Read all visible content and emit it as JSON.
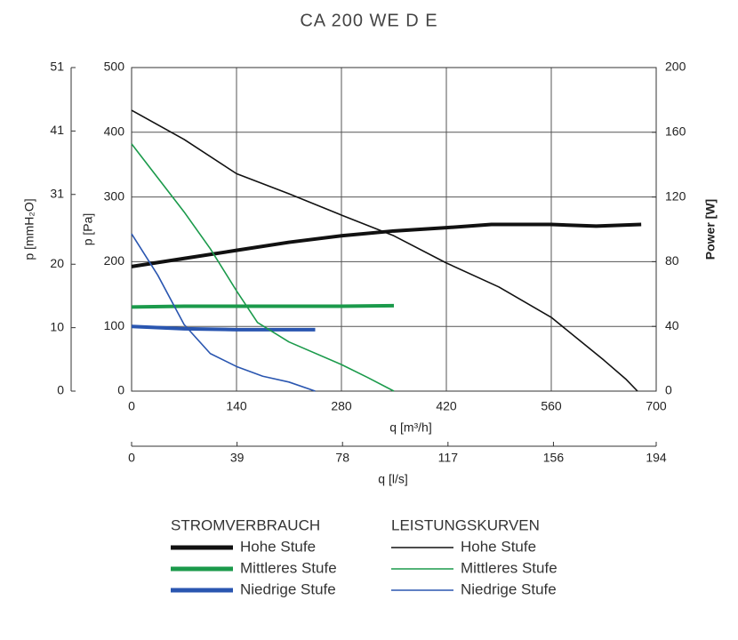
{
  "chart_data": {
    "type": "line",
    "title": "CA 200 WE D E",
    "xlabel": "q [m³/h]",
    "ylabel": "p [Pa]",
    "y3label": "p [mmH₂O]",
    "y2label": "Power [W]",
    "x2label": "q [l/s]",
    "xlim": [
      0,
      700
    ],
    "xticks": [
      0,
      140,
      280,
      420,
      560,
      700
    ],
    "x2lim": [
      0,
      194
    ],
    "x2ticks": [
      0,
      39,
      78,
      117,
      156,
      194
    ],
    "ylim": [
      0,
      500
    ],
    "yticks": [
      0,
      100,
      200,
      300,
      400,
      500
    ],
    "y3lim": [
      0,
      51
    ],
    "y3ticks": [
      0,
      10,
      20,
      31,
      41,
      51
    ],
    "y2lim": [
      0,
      200
    ],
    "y2ticks": [
      0,
      40,
      80,
      120,
      160,
      200
    ],
    "grid": true,
    "legend_titles": [
      "STROMVERBRAUCH",
      "LEISTUNGSKURVEN"
    ],
    "series": [
      {
        "name": "Hohe Stufe",
        "color": "#111111",
        "axis": "y2",
        "x": [
          0,
          70,
          140,
          210,
          280,
          350,
          420,
          480,
          560,
          620,
          680
        ],
        "values": [
          77,
          82,
          87,
          92,
          96,
          99,
          101,
          103,
          103,
          102,
          103
        ]
      },
      {
        "name": "Mittleres Stufe",
        "color": "#1b9a4b",
        "axis": "y2",
        "x": [
          0,
          70,
          140,
          210,
          280,
          350
        ],
        "values": [
          52,
          52.5,
          52.5,
          52.5,
          52.5,
          52.8
        ]
      },
      {
        "name": "Niedrige Stufe",
        "color": "#2a56b0",
        "axis": "y2",
        "x": [
          0,
          70,
          140,
          245
        ],
        "values": [
          40,
          38.5,
          38,
          38
        ]
      },
      {
        "name": "Hohe Stufe",
        "color": "#111111",
        "x": [
          0,
          70,
          140,
          210,
          280,
          350,
          420,
          490,
          560,
          630,
          660,
          675
        ],
        "values": [
          434,
          389,
          336,
          305,
          272,
          240,
          198,
          161,
          114,
          48,
          18,
          0
        ]
      },
      {
        "name": "Mittleres Stufe",
        "color": "#1b9a4b",
        "x": [
          0,
          70,
          105,
          140,
          168,
          210,
          280,
          315,
          350
        ],
        "values": [
          382,
          277,
          220,
          155,
          106,
          76,
          41,
          21,
          0
        ]
      },
      {
        "name": "Niedrige Stufe",
        "color": "#2a56b0",
        "x": [
          0,
          35,
          70,
          105,
          140,
          175,
          210,
          245
        ],
        "values": [
          243,
          179,
          103,
          58,
          38,
          23,
          14,
          0
        ]
      }
    ]
  }
}
